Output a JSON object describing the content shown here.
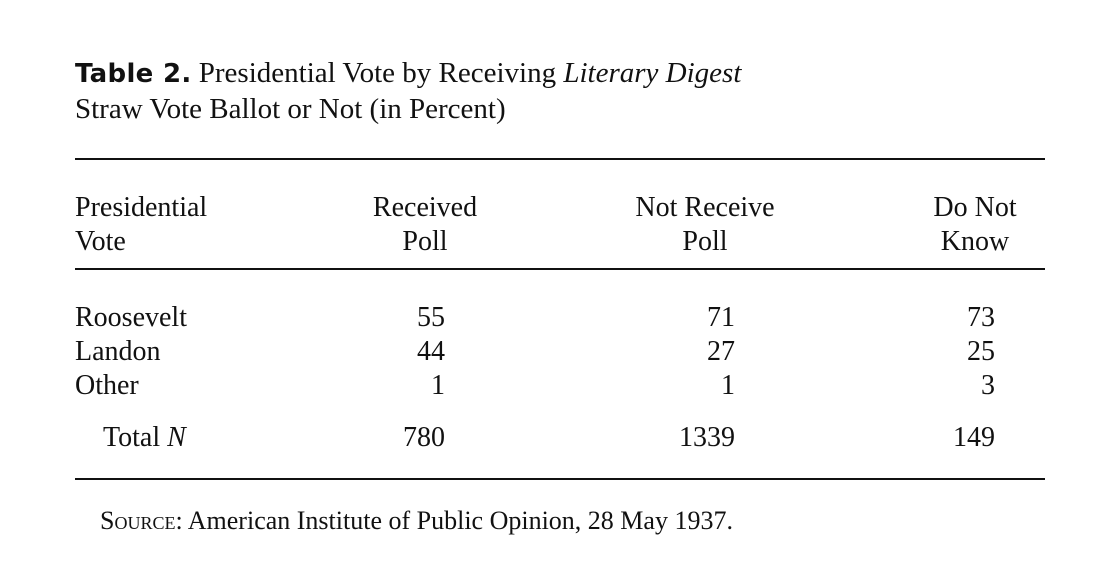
{
  "caption": {
    "label": "Table 2.",
    "text_before": " Presidential Vote by Receiving ",
    "italic": "Literary Digest",
    "line2": "Straw Vote Ballot or Not (in Percent)"
  },
  "table": {
    "headers": [
      {
        "line1": "Presidential",
        "line2": "Vote"
      },
      {
        "line1": "Received",
        "line2": "Poll"
      },
      {
        "line1": "Not Receive",
        "line2": "Poll"
      },
      {
        "line1": "Do Not",
        "line2": "Know"
      }
    ],
    "rows": [
      {
        "label": "Roosevelt",
        "values": [
          "55",
          "71",
          "73"
        ]
      },
      {
        "label": "Landon",
        "values": [
          "44",
          "27",
          "25"
        ]
      },
      {
        "label": "Other",
        "values": [
          "1",
          "1",
          "3"
        ]
      }
    ],
    "total": {
      "label": "Total ",
      "label_italic": "N",
      "values": [
        "780",
        "1339",
        "149"
      ]
    }
  },
  "source": {
    "label": "Source:",
    "text": " American Institute of Public Opinion, 28 May 1937."
  }
}
